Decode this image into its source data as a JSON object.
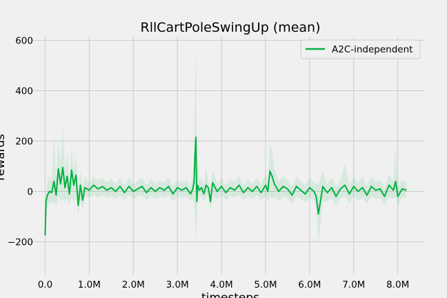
{
  "chart_data": {
    "type": "line",
    "title": "RllCartPoleSwingUp (mean)",
    "xlabel": "timesteps",
    "ylabel": "rewards",
    "xlim": [
      -320000,
      8600000
    ],
    "ylim": [
      -330,
      615
    ],
    "x_ticks": [
      0,
      1000000,
      2000000,
      3000000,
      4000000,
      5000000,
      6000000,
      7000000,
      8000000
    ],
    "x_tick_labels": [
      "0.0",
      "1.0M",
      "2.0M",
      "3.0M",
      "4.0M",
      "5.0M",
      "6.0M",
      "7.0M",
      "8.0M"
    ],
    "y_ticks": [
      -200,
      0,
      200,
      400,
      600
    ],
    "y_tick_labels": [
      "−200",
      "0",
      "200",
      "400",
      "600"
    ],
    "grid": true,
    "legend_position": "top-right",
    "series": [
      {
        "name": "A2C-independent",
        "color": "#00b140",
        "band_color": "#00b140",
        "x": [
          0,
          20000,
          50000,
          100000,
          150000,
          200000,
          250000,
          300000,
          350000,
          400000,
          450000,
          500000,
          550000,
          600000,
          650000,
          700000,
          750000,
          800000,
          850000,
          900000,
          1000000,
          1100000,
          1200000,
          1300000,
          1400000,
          1500000,
          1600000,
          1700000,
          1800000,
          1900000,
          2000000,
          2100000,
          2200000,
          2300000,
          2400000,
          2500000,
          2600000,
          2700000,
          2800000,
          2900000,
          3000000,
          3100000,
          3200000,
          3300000,
          3350000,
          3380000,
          3400000,
          3420000,
          3440000,
          3460000,
          3500000,
          3550000,
          3600000,
          3650000,
          3700000,
          3750000,
          3800000,
          3900000,
          4000000,
          4100000,
          4200000,
          4300000,
          4400000,
          4500000,
          4600000,
          4700000,
          4800000,
          4900000,
          5000000,
          5050000,
          5100000,
          5150000,
          5200000,
          5300000,
          5400000,
          5500000,
          5600000,
          5700000,
          5800000,
          5900000,
          6000000,
          6100000,
          6150000,
          6200000,
          6300000,
          6400000,
          6500000,
          6600000,
          6700000,
          6800000,
          6900000,
          7000000,
          7100000,
          7200000,
          7300000,
          7400000,
          7500000,
          7600000,
          7700000,
          7800000,
          7900000,
          7950000,
          8000000,
          8100000,
          8200000
        ],
        "values": [
          -175,
          -40,
          -15,
          0,
          -5,
          40,
          -15,
          90,
          30,
          95,
          15,
          60,
          -10,
          85,
          25,
          65,
          -55,
          25,
          -35,
          15,
          5,
          25,
          10,
          20,
          5,
          15,
          0,
          20,
          -5,
          20,
          0,
          10,
          20,
          -5,
          15,
          0,
          15,
          5,
          20,
          -10,
          15,
          5,
          15,
          -10,
          10,
          40,
          145,
          215,
          -40,
          25,
          5,
          15,
          -10,
          25,
          15,
          -40,
          35,
          0,
          20,
          -5,
          15,
          5,
          25,
          -5,
          15,
          0,
          20,
          -5,
          25,
          0,
          80,
          60,
          30,
          0,
          20,
          10,
          -15,
          20,
          5,
          -10,
          15,
          0,
          -20,
          -90,
          20,
          -5,
          15,
          -20,
          10,
          25,
          -10,
          20,
          0,
          15,
          -15,
          20,
          5,
          10,
          -20,
          25,
          5,
          40,
          -20,
          10,
          5
        ],
        "lower": [
          -175,
          -70,
          -60,
          -45,
          -50,
          -40,
          -60,
          -20,
          -40,
          -25,
          -45,
          -25,
          -60,
          -20,
          -45,
          -20,
          -100,
          -30,
          -80,
          -20,
          -25,
          -15,
          -25,
          -15,
          -25,
          -20,
          -30,
          -15,
          -35,
          -15,
          -30,
          -20,
          -15,
          -35,
          -20,
          -30,
          -20,
          -25,
          -15,
          -40,
          -20,
          -25,
          -20,
          -40,
          -30,
          -40,
          -120,
          -190,
          -120,
          -40,
          -25,
          -20,
          -40,
          -20,
          -20,
          -80,
          -20,
          -30,
          -15,
          -35,
          -20,
          -25,
          -15,
          -35,
          -20,
          -30,
          -15,
          -35,
          -20,
          -40,
          -20,
          -30,
          -20,
          -40,
          -20,
          -25,
          -50,
          -20,
          -30,
          -45,
          -25,
          -35,
          -70,
          -210,
          -40,
          -40,
          -25,
          -60,
          -30,
          -20,
          -45,
          -20,
          -35,
          -25,
          -50,
          -20,
          -30,
          -25,
          -55,
          -20,
          -30,
          -20,
          -60,
          -25,
          -25
        ],
        "upper": [
          -175,
          -10,
          30,
          60,
          40,
          220,
          60,
          200,
          110,
          270,
          80,
          160,
          40,
          180,
          80,
          140,
          20,
          80,
          20,
          55,
          35,
          60,
          45,
          55,
          35,
          50,
          30,
          55,
          25,
          55,
          30,
          40,
          55,
          25,
          50,
          30,
          45,
          35,
          55,
          20,
          45,
          35,
          45,
          20,
          60,
          150,
          430,
          575,
          80,
          130,
          45,
          55,
          25,
          90,
          50,
          10,
          90,
          30,
          55,
          25,
          50,
          35,
          60,
          25,
          50,
          30,
          55,
          25,
          70,
          40,
          195,
          160,
          90,
          40,
          60,
          45,
          20,
          60,
          40,
          25,
          55,
          35,
          30,
          30,
          80,
          30,
          55,
          20,
          45,
          110,
          25,
          60,
          35,
          55,
          20,
          60,
          40,
          45,
          15,
          70,
          40,
          180,
          20,
          45,
          35
        ]
      }
    ]
  }
}
